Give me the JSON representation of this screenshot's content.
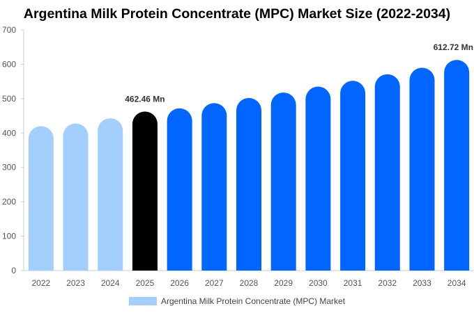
{
  "chart_data": {
    "type": "bar",
    "title": "Argentina Milk Protein Concentrate (MPC) Market Size (2022-2034)",
    "categories": [
      "2022",
      "2023",
      "2024",
      "2025",
      "2026",
      "2027",
      "2028",
      "2029",
      "2030",
      "2031",
      "2032",
      "2033",
      "2034"
    ],
    "series": [
      {
        "name": "Argentina Milk Protein Concentrate (MPC) Market",
        "values": [
          420,
          428,
          443,
          462.46,
          472,
          487,
          502,
          518,
          535,
          552,
          571,
          590,
          612.72
        ]
      }
    ],
    "ylim": [
      0,
      700
    ],
    "yticks": [
      0,
      100,
      200,
      300,
      400,
      500,
      600,
      700
    ],
    "grid": false,
    "legend": "bottom-center",
    "data_labels": [
      {
        "category": "2025",
        "text": "462.46 Mn"
      },
      {
        "category": "2034",
        "text": "612.72 Mn"
      }
    ],
    "colors": {
      "historical": "#a3cfff",
      "current": "#000000",
      "forecast": "#0066ff"
    },
    "segments": {
      "historical": [
        "2022",
        "2023",
        "2024"
      ],
      "current": [
        "2025"
      ],
      "forecast": [
        "2026",
        "2027",
        "2028",
        "2029",
        "2030",
        "2031",
        "2032",
        "2033",
        "2034"
      ]
    }
  }
}
